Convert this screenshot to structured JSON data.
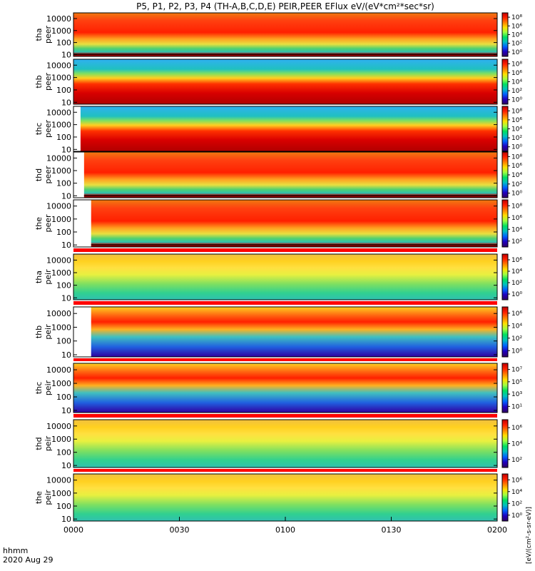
{
  "chart_data": {
    "type": "heatmap",
    "title": "P5, P1, P2, P3, P4 (TH-A,B,C,D,E) PEIR,PEER EFlux eV/(eV*cm²*sec*sr)",
    "colorbar_label": "[eV/(cm²-s-sr-eV)]",
    "x_label_hhmm": "hhmm",
    "x_label_date": "2020 Aug 29",
    "x_ticks": [
      "0000",
      "0030",
      "0100",
      "0130",
      "0200"
    ],
    "xlim": [
      "00:00",
      "02:00"
    ],
    "y_scale": "log",
    "ylim": [
      7,
      30000
    ],
    "y_ticks": [
      "10000",
      "1000",
      "100",
      "10"
    ],
    "colormap": "rainbow (violet-blue-cyan-green-yellow-orange-red)",
    "colors": {
      "low": "#3000a0",
      "mid": "#00d060",
      "high": "#ff2000",
      "max": "#c00000",
      "spacecraft_potential_line": "#000000",
      "separator_band": "#ff0000"
    },
    "panels": [
      {
        "label1": "tha",
        "label2": "peer",
        "y_ticks": [
          "10000",
          "1000",
          "100",
          "10"
        ],
        "cb_ticks": [
          "10⁸",
          "10⁶",
          "10⁴",
          "10²",
          "10⁰"
        ],
        "data_start": "00:00"
      },
      {
        "label1": "thb",
        "label2": "peer",
        "y_ticks": [
          "10000",
          "1000",
          "100",
          "10"
        ],
        "cb_ticks": [
          "10⁸",
          "10⁶",
          "10⁴",
          "10²",
          "10⁰"
        ],
        "data_start": "00:00"
      },
      {
        "label1": "thc",
        "label2": "peer",
        "y_ticks": [
          "10000",
          "1000",
          "100",
          "10"
        ],
        "cb_ticks": [
          "10⁸",
          "10⁶",
          "10⁴",
          "10²",
          "10⁰"
        ],
        "data_start": "00:02"
      },
      {
        "label1": "thd",
        "label2": "peer",
        "y_ticks": [
          "10000",
          "1000",
          "100",
          "10"
        ],
        "cb_ticks": [
          "10⁸",
          "10⁶",
          "10⁴",
          "10²",
          "10⁰"
        ],
        "data_start": "00:03"
      },
      {
        "label1": "the",
        "label2": "peer",
        "y_ticks": [
          "10000",
          "1000",
          "100",
          "10"
        ],
        "cb_ticks": [
          "10⁸",
          "10⁶",
          "10⁴",
          "10²"
        ],
        "data_start": "00:05"
      },
      {
        "label1": "tha",
        "label2": "peir",
        "y_ticks": [
          "10000",
          "1000",
          "100",
          "10"
        ],
        "cb_ticks": [
          "10⁶",
          "10⁴",
          "10²",
          "10⁰"
        ],
        "data_start": "00:00"
      },
      {
        "label1": "thb",
        "label2": "peir",
        "y_ticks": [
          "10000",
          "1000",
          "100",
          "10"
        ],
        "cb_ticks": [
          "10⁶",
          "10⁴",
          "10²",
          "10⁰"
        ],
        "data_start": "00:05"
      },
      {
        "label1": "thc",
        "label2": "peir",
        "y_ticks": [
          "10000",
          "1000",
          "100",
          "10"
        ],
        "cb_ticks": [
          "10⁷",
          "10⁵",
          "10³",
          "10¹"
        ],
        "data_start": "00:00"
      },
      {
        "label1": "thd",
        "label2": "peir",
        "y_ticks": [
          "10000",
          "1000",
          "100",
          "10"
        ],
        "cb_ticks": [
          "10⁶",
          "10⁴",
          "10²"
        ],
        "data_start": "00:00"
      },
      {
        "label1": "the",
        "label2": "peir",
        "y_ticks": [
          "10000",
          "1000",
          "100",
          "10"
        ],
        "cb_ticks": [
          "10⁶",
          "10⁴",
          "10²",
          "10⁰"
        ],
        "data_start": "00:00"
      }
    ]
  }
}
